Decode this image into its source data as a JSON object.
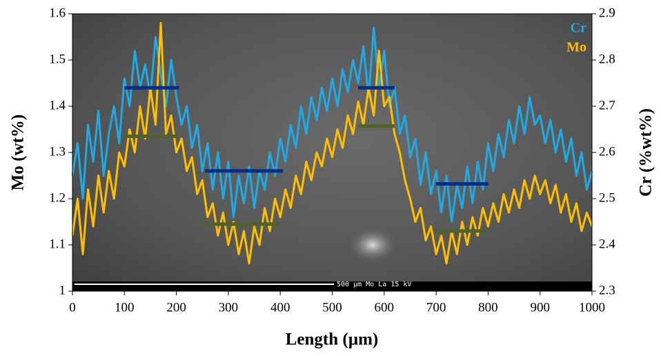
{
  "chart_data": {
    "type": "line",
    "xlabel": "Length (µm)",
    "ylabel": "Mo (wt%)",
    "y2label": "Cr (%wt%)",
    "image_caption": "500 µm  Mo La  15 kV",
    "x": [
      0,
      10,
      20,
      30,
      40,
      50,
      60,
      70,
      80,
      90,
      100,
      110,
      120,
      130,
      140,
      150,
      160,
      170,
      180,
      190,
      200,
      210,
      220,
      230,
      240,
      250,
      260,
      270,
      280,
      290,
      300,
      310,
      320,
      330,
      340,
      350,
      360,
      370,
      380,
      390,
      400,
      410,
      420,
      430,
      440,
      450,
      460,
      470,
      480,
      490,
      500,
      510,
      520,
      530,
      540,
      550,
      560,
      570,
      580,
      590,
      600,
      610,
      620,
      630,
      640,
      650,
      660,
      670,
      680,
      690,
      700,
      710,
      720,
      730,
      740,
      750,
      760,
      770,
      780,
      790,
      800,
      810,
      820,
      830,
      840,
      850,
      860,
      870,
      880,
      890,
      900,
      910,
      920,
      930,
      940,
      950,
      960,
      970,
      980,
      990,
      1000
    ],
    "series": [
      {
        "name": "Cr",
        "color": "#1fa9e6",
        "axis": "y2",
        "values": [
          2.55,
          2.62,
          2.5,
          2.66,
          2.58,
          2.69,
          2.55,
          2.64,
          2.7,
          2.62,
          2.76,
          2.7,
          2.82,
          2.74,
          2.79,
          2.72,
          2.85,
          2.77,
          2.7,
          2.8,
          2.72,
          2.66,
          2.7,
          2.61,
          2.66,
          2.56,
          2.62,
          2.52,
          2.6,
          2.5,
          2.58,
          2.46,
          2.55,
          2.49,
          2.57,
          2.48,
          2.56,
          2.52,
          2.6,
          2.55,
          2.63,
          2.58,
          2.66,
          2.61,
          2.7,
          2.64,
          2.72,
          2.67,
          2.74,
          2.69,
          2.76,
          2.7,
          2.78,
          2.73,
          2.8,
          2.75,
          2.83,
          2.72,
          2.87,
          2.74,
          2.82,
          2.7,
          2.74,
          2.64,
          2.68,
          2.59,
          2.63,
          2.53,
          2.6,
          2.51,
          2.56,
          2.47,
          2.55,
          2.45,
          2.53,
          2.48,
          2.57,
          2.49,
          2.58,
          2.52,
          2.62,
          2.56,
          2.64,
          2.59,
          2.67,
          2.62,
          2.7,
          2.64,
          2.72,
          2.66,
          2.68,
          2.62,
          2.67,
          2.6,
          2.65,
          2.58,
          2.63,
          2.55,
          2.6,
          2.52,
          2.56
        ]
      },
      {
        "name": "Mo",
        "color": "#ffbf00",
        "axis": "y",
        "values": [
          1.12,
          1.2,
          1.08,
          1.22,
          1.14,
          1.25,
          1.17,
          1.26,
          1.2,
          1.3,
          1.27,
          1.35,
          1.3,
          1.4,
          1.33,
          1.44,
          1.36,
          1.58,
          1.34,
          1.38,
          1.3,
          1.33,
          1.26,
          1.29,
          1.21,
          1.24,
          1.16,
          1.19,
          1.12,
          1.17,
          1.1,
          1.15,
          1.08,
          1.13,
          1.06,
          1.14,
          1.1,
          1.18,
          1.13,
          1.2,
          1.16,
          1.22,
          1.18,
          1.25,
          1.21,
          1.28,
          1.24,
          1.3,
          1.27,
          1.33,
          1.29,
          1.35,
          1.31,
          1.38,
          1.34,
          1.41,
          1.36,
          1.44,
          1.38,
          1.52,
          1.4,
          1.42,
          1.34,
          1.3,
          1.24,
          1.2,
          1.15,
          1.18,
          1.11,
          1.14,
          1.08,
          1.12,
          1.06,
          1.13,
          1.08,
          1.15,
          1.1,
          1.16,
          1.12,
          1.18,
          1.14,
          1.19,
          1.15,
          1.21,
          1.17,
          1.22,
          1.18,
          1.24,
          1.2,
          1.25,
          1.21,
          1.24,
          1.19,
          1.23,
          1.17,
          1.21,
          1.15,
          1.19,
          1.13,
          1.17,
          1.14
        ]
      }
    ],
    "mean_lines": [
      {
        "axis": "y2",
        "color": "#002f87",
        "x": [
          100,
          205
        ],
        "value": 2.74
      },
      {
        "axis": "y2",
        "color": "#002f87",
        "x": [
          255,
          405
        ],
        "value": 2.56
      },
      {
        "axis": "y2",
        "color": "#002f87",
        "x": [
          550,
          620
        ],
        "value": 2.74
      },
      {
        "axis": "y2",
        "color": "#002f87",
        "x": [
          700,
          800
        ],
        "value": 2.532
      },
      {
        "axis": "y",
        "color": "#4f6228",
        "x": [
          100,
          200
        ],
        "value": 1.335
      },
      {
        "axis": "y",
        "color": "#4f6228",
        "x": [
          250,
          400
        ],
        "value": 1.145
      },
      {
        "axis": "y",
        "color": "#4f6228",
        "x": [
          550,
          620
        ],
        "value": 1.357
      },
      {
        "axis": "y",
        "color": "#4f6228",
        "x": [
          700,
          800
        ],
        "value": 1.13
      }
    ],
    "xlim": [
      0,
      1000
    ],
    "xticks": [
      0,
      100,
      200,
      300,
      400,
      500,
      600,
      700,
      800,
      900,
      1000
    ],
    "ylim": [
      1,
      1.6
    ],
    "yticks": [
      1,
      1.1,
      1.2,
      1.3,
      1.4,
      1.5,
      1.6
    ],
    "y2lim": [
      2.3,
      2.9
    ],
    "y2ticks": [
      2.3,
      2.4,
      2.5,
      2.6,
      2.7,
      2.8,
      2.9
    ],
    "legend": "top-right",
    "grid": false
  }
}
